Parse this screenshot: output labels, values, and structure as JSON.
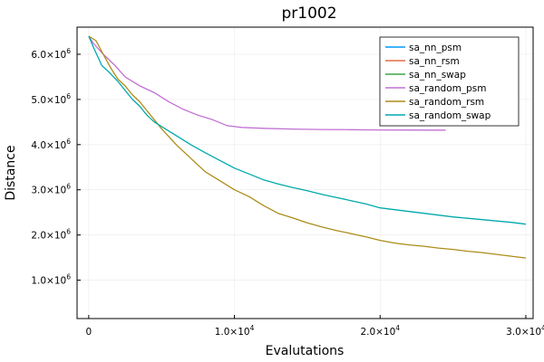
{
  "chart_data": {
    "type": "line",
    "title": "pr1002",
    "xlabel": "Evalutations",
    "ylabel": "Distance",
    "xlim": [
      -800,
      30500
    ],
    "ylim": [
      150000,
      6600000
    ],
    "grid": true,
    "legend_position": "top-right",
    "x_ticks": [
      {
        "value": 0,
        "mantissa": "0",
        "exponent": ""
      },
      {
        "value": 10000,
        "mantissa": "1.0×10",
        "exponent": "4"
      },
      {
        "value": 20000,
        "mantissa": "2.0×10",
        "exponent": "4"
      },
      {
        "value": 30000,
        "mantissa": "3.0×10",
        "exponent": "4"
      }
    ],
    "y_ticks": [
      {
        "value": 1000000,
        "mantissa": "1.0×10",
        "exponent": "6"
      },
      {
        "value": 2000000,
        "mantissa": "2.0×10",
        "exponent": "6"
      },
      {
        "value": 3000000,
        "mantissa": "3.0×10",
        "exponent": "6"
      },
      {
        "value": 4000000,
        "mantissa": "4.0×10",
        "exponent": "6"
      },
      {
        "value": 5000000,
        "mantissa": "5.0×10",
        "exponent": "6"
      },
      {
        "value": 6000000,
        "mantissa": "6.0×10",
        "exponent": "6"
      }
    ],
    "series": [
      {
        "name": "sa_nn_psm",
        "color": "#009af9",
        "x": [],
        "y": []
      },
      {
        "name": "sa_nn_rsm",
        "color": "#e26f46",
        "x": [],
        "y": []
      },
      {
        "name": "sa_nn_swap",
        "color": "#3da44d",
        "x": [],
        "y": []
      },
      {
        "name": "sa_random_psm",
        "color": "#c271d2",
        "x": [
          0,
          300,
          1000,
          1800,
          2500,
          3500,
          4500,
          5500,
          6500,
          7500,
          8500,
          9500,
          10500,
          12000,
          14000,
          16000,
          18000,
          20000,
          22000,
          24500
        ],
        "y": [
          6400000,
          6250000,
          6000000,
          5750000,
          5500000,
          5300000,
          5150000,
          4950000,
          4780000,
          4650000,
          4550000,
          4420000,
          4380000,
          4360000,
          4345000,
          4335000,
          4330000,
          4325000,
          4322000,
          4320000
        ]
      },
      {
        "name": "sa_random_rsm",
        "color": "#ac8d18",
        "x": [
          0,
          500,
          1000,
          1500,
          2000,
          2500,
          3000,
          3500,
          4000,
          4500,
          5000,
          6000,
          7000,
          8000,
          9000,
          10000,
          11000,
          12000,
          13000,
          14000,
          15000,
          16000,
          17000,
          18000,
          19000,
          20000,
          21000,
          22000,
          23000,
          24000,
          25000,
          26000,
          27000,
          28000,
          29000,
          30000
        ],
        "y": [
          6400000,
          6300000,
          6000000,
          5700000,
          5450000,
          5300000,
          5100000,
          4950000,
          4750000,
          4550000,
          4350000,
          4000000,
          3700000,
          3400000,
          3200000,
          3000000,
          2850000,
          2650000,
          2480000,
          2380000,
          2270000,
          2180000,
          2100000,
          2030000,
          1960000,
          1880000,
          1820000,
          1780000,
          1750000,
          1710000,
          1680000,
          1640000,
          1610000,
          1570000,
          1530000,
          1490000
        ]
      },
      {
        "name": "sa_random_swap",
        "color": "#00a9ad",
        "x": [
          0,
          400,
          900,
          1400,
          2000,
          2500,
          3000,
          3500,
          4000,
          4500,
          5000,
          6000,
          7000,
          8000,
          9000,
          10000,
          11000,
          12000,
          13000,
          14000,
          15000,
          16000,
          17000,
          18000,
          19000,
          20000,
          21000,
          22000,
          23000,
          24000,
          25000,
          26000,
          27000,
          28000,
          29000,
          30000
        ],
        "y": [
          6400000,
          6100000,
          5750000,
          5600000,
          5400000,
          5200000,
          5000000,
          4850000,
          4650000,
          4500000,
          4400000,
          4200000,
          4000000,
          3820000,
          3650000,
          3480000,
          3350000,
          3220000,
          3130000,
          3050000,
          2980000,
          2900000,
          2830000,
          2760000,
          2690000,
          2600000,
          2560000,
          2520000,
          2480000,
          2440000,
          2400000,
          2370000,
          2340000,
          2310000,
          2280000,
          2240000
        ]
      }
    ]
  }
}
